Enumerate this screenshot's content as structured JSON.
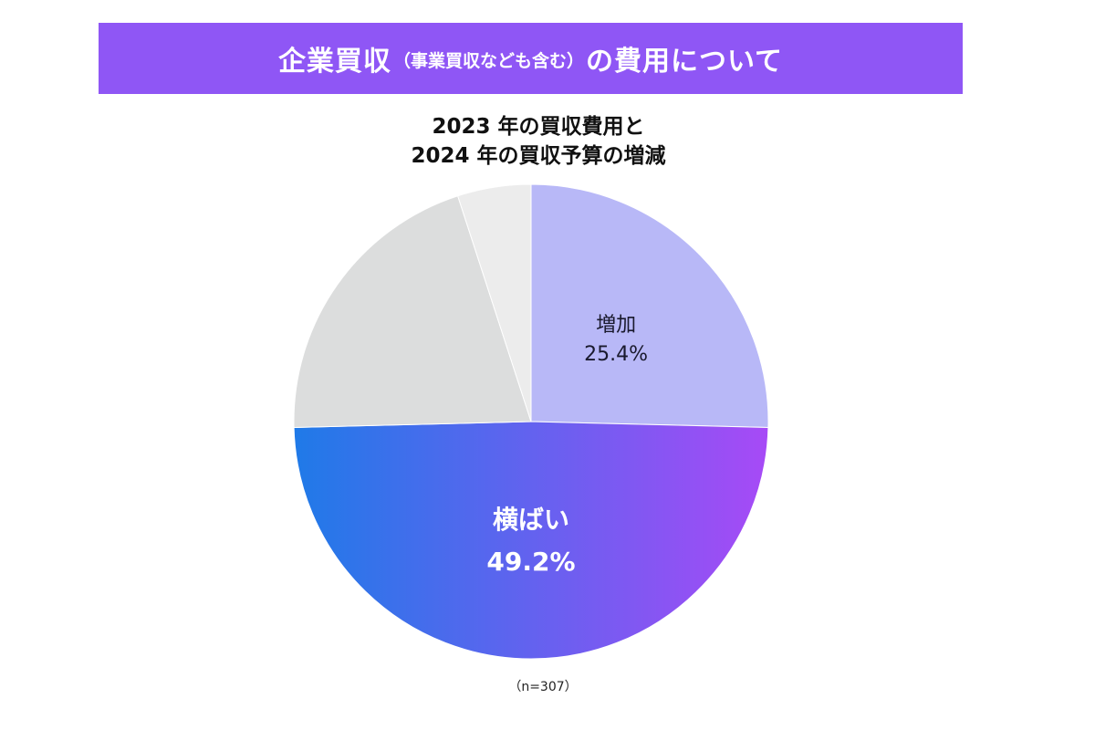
{
  "header": {
    "title_main_a": "企業買収",
    "title_sub": "（事業買収なども含む）",
    "title_main_b": "の費用について",
    "background_color": "#8f56f5"
  },
  "chart_data": {
    "type": "pie",
    "title_line1": "2023 年の買収費用と",
    "title_line2": "2024 年の買収予算の増減",
    "slices": [
      {
        "label": "増加",
        "value_label": "25.4%",
        "value": 25.4,
        "color": "#b8b8f7"
      },
      {
        "label": "横ばい",
        "value_label": "49.2%",
        "value": 49.2,
        "gradient": [
          "#1f7ae8",
          "#a74af6"
        ]
      },
      {
        "label": "",
        "value_label": "",
        "value": 20.4,
        "color": "#dcdddd"
      },
      {
        "label": "",
        "value_label": "",
        "value": 5.0,
        "color": "#ececec"
      }
    ]
  },
  "footnote": "（n=307）"
}
